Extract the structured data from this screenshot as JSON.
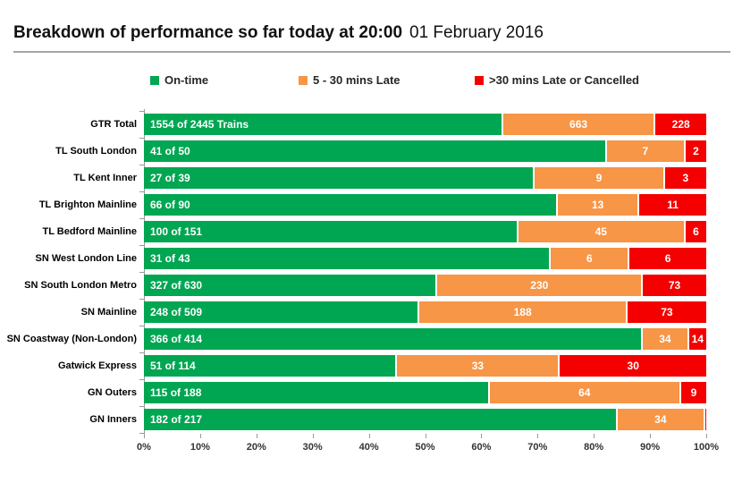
{
  "title": {
    "main": "Breakdown of performance so far today at 20:00",
    "date": "01 February 2016"
  },
  "legend": [
    {
      "label": "On-time",
      "color": "#00A651"
    },
    {
      "label": "5 - 30 mins Late",
      "color": "#F79646"
    },
    {
      "label": ">30 mins Late or Cancelled",
      "color": "#F40000"
    }
  ],
  "colors": {
    "on_time": "#00A651",
    "late_5_30": "#F79646",
    "late_30_cancelled": "#F40000",
    "axis": "#9a9a9a",
    "bar_label_text": "#ffffff"
  },
  "chart_data": {
    "type": "bar",
    "orientation": "horizontal",
    "stacked": true,
    "title": "Breakdown of performance so far today at 20:00 01 February 2016",
    "categories": [
      "GTR Total",
      "TL South London",
      "TL Kent Inner",
      "TL Brighton Mainline",
      "TL Bedford Mainline",
      "SN West London Line",
      "SN South London Metro",
      "SN Mainline",
      "SN Coastway (Non-London)",
      "Gatwick Express",
      "GN Outers",
      "GN Inners"
    ],
    "totals": [
      2445,
      50,
      39,
      90,
      151,
      43,
      630,
      509,
      414,
      114,
      188,
      217
    ],
    "series": [
      {
        "name": "On-time",
        "values": [
          1554,
          41,
          27,
          66,
          100,
          31,
          327,
          248,
          366,
          51,
          115,
          182
        ],
        "labels": [
          "1554 of 2445 Trains",
          "41 of 50",
          "27 of 39",
          "66 of 90",
          "100 of 151",
          "31 of 43",
          "327 of 630",
          "248 of 509",
          "366 of 414",
          "51 of 114",
          "115 of 188",
          "182 of 217"
        ]
      },
      {
        "name": "5 - 30 mins Late",
        "values": [
          663,
          7,
          9,
          13,
          45,
          6,
          230,
          188,
          34,
          33,
          64,
          34
        ]
      },
      {
        "name": ">30 mins Late or Cancelled",
        "values": [
          228,
          2,
          3,
          11,
          6,
          6,
          73,
          73,
          14,
          30,
          9,
          1
        ]
      }
    ],
    "x_ticks": [
      "0%",
      "10%",
      "20%",
      "30%",
      "40%",
      "50%",
      "60%",
      "70%",
      "80%",
      "90%",
      "100%"
    ],
    "xlim": [
      0,
      100
    ],
    "grid": false,
    "legend_position": "top"
  }
}
